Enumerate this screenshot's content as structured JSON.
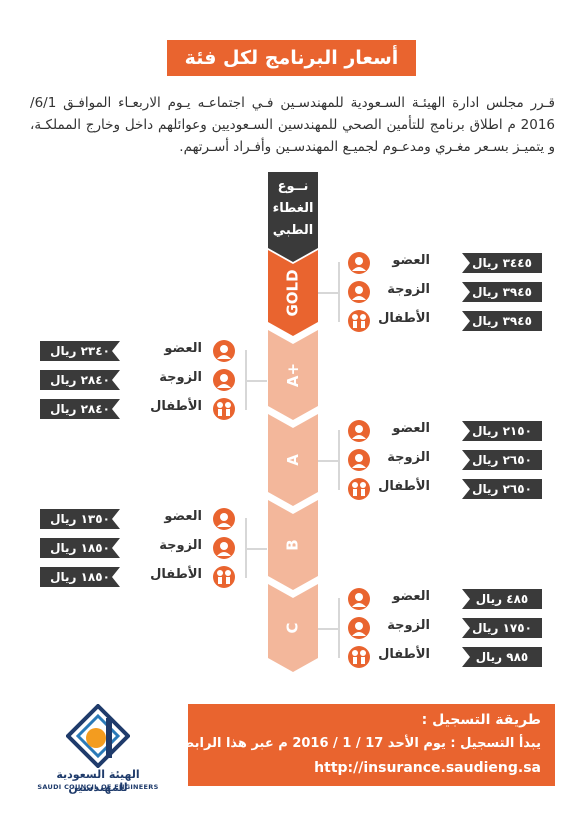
{
  "title": "أسعار البرنامج لكل فئة",
  "intro": "قـرر مجلس ادارة الهيئـة السـعودية للمهندسـين فـي اجتماعـه يـوم الاربعـاء الموافـق 6/1/ 2016 م اطلاق برنامج للتأمين الصحي للمهندسين السـعوديين وعوائلهم داخل وخارج المملكـة، و يتميـز بسـعر مغـري ومدعـوم لجميـع المهندسـين وأفـراد أسـرتهم.",
  "header_label": "نــوع الغطاء الطبي",
  "colors": {
    "orange": "#e9642f",
    "dark": "#3a3a3a",
    "gray": "#d7d7d7"
  },
  "tiers": [
    {
      "name": "GOLD",
      "side": "right",
      "rows": [
        {
          "label": "العضو",
          "price": "٣٤٤٥ ريال",
          "icon": "man-icon"
        },
        {
          "label": "الزوجة",
          "price": "٣٩٤٥ ريال",
          "icon": "woman-icon"
        },
        {
          "label": "الأطفال",
          "price": "٣٩٤٥ ريال",
          "icon": "children-icon"
        }
      ]
    },
    {
      "name": "A+",
      "side": "left",
      "rows": [
        {
          "label": "العضو",
          "price": "٢٣٤٠ ريال",
          "icon": "man-icon"
        },
        {
          "label": "الزوجة",
          "price": "٢٨٤٠ ريال",
          "icon": "woman-icon"
        },
        {
          "label": "الأطفال",
          "price": "٢٨٤٠ ريال",
          "icon": "children-icon"
        }
      ]
    },
    {
      "name": "A",
      "side": "right",
      "rows": [
        {
          "label": "العضو",
          "price": "٢١٥٠ ريال",
          "icon": "man-icon"
        },
        {
          "label": "الزوجة",
          "price": "٢٦٥٠ ريال",
          "icon": "woman-icon"
        },
        {
          "label": "الأطفال",
          "price": "٢٦٥٠ ريال",
          "icon": "children-icon"
        }
      ]
    },
    {
      "name": "B",
      "side": "left",
      "rows": [
        {
          "label": "العضو",
          "price": "١٣٥٠ ريال",
          "icon": "man-icon"
        },
        {
          "label": "الزوجة",
          "price": "١٨٥٠ ريال",
          "icon": "woman-icon"
        },
        {
          "label": "الأطفال",
          "price": "١٨٥٠ ريال",
          "icon": "children-icon"
        }
      ]
    },
    {
      "name": "C",
      "side": "right",
      "rows": [
        {
          "label": "العضو",
          "price": "٤٨٥ ريال",
          "icon": "man-icon"
        },
        {
          "label": "الزوجة",
          "price": "١٧٥٠ ريال",
          "icon": "woman-icon"
        },
        {
          "label": "الأطفال",
          "price": "٩٨٥ ريال",
          "icon": "children-icon"
        }
      ]
    }
  ],
  "registration": {
    "title": "طريقة التسجيل :",
    "line": "يبدأ التسجيل : يوم الأحد 17 / 1 / 2016 م عبر هذا الرابط",
    "url": "http://insurance.saudieng.sa"
  },
  "logo": {
    "arabic": "الهيئة السعودية للمهندسين",
    "english": "SAUDI COUNCIL OF ENGINEERS"
  }
}
